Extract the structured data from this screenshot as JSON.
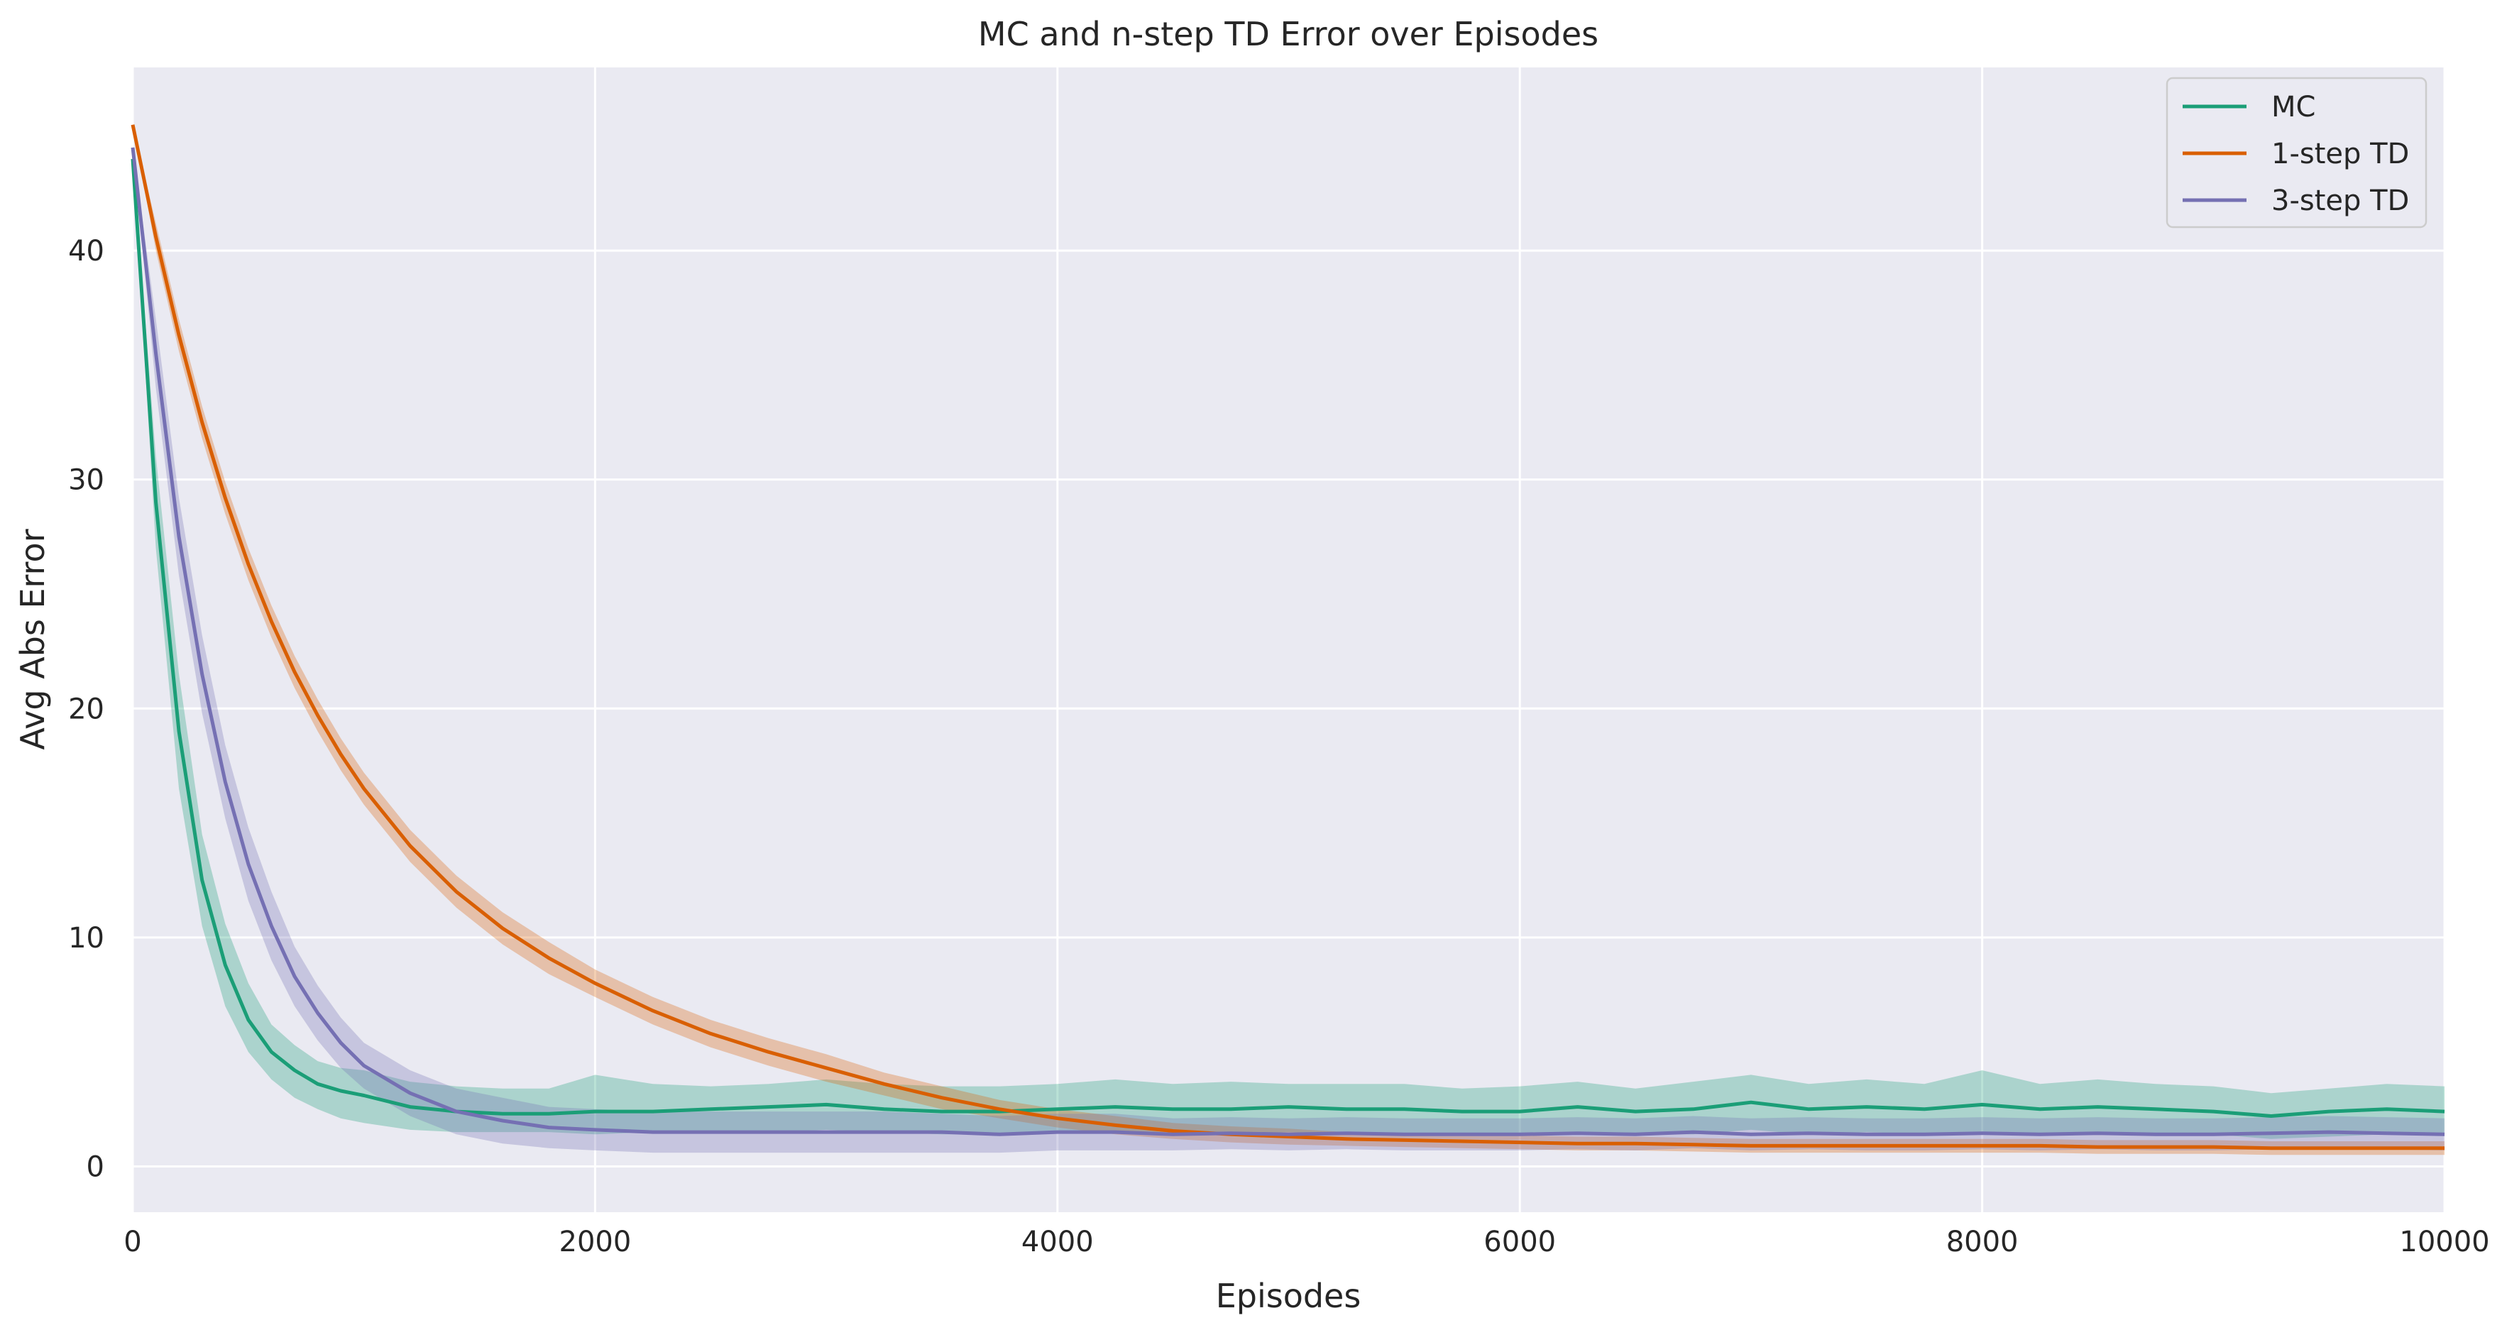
{
  "chart_data": {
    "type": "line",
    "title": "MC and n-step TD Error over Episodes",
    "xlabel": "Episodes",
    "ylabel": "Avg Abs Error",
    "xlim": [
      0,
      10000
    ],
    "ylim": [
      -2,
      48
    ],
    "xticks": [
      "0",
      "2000",
      "4000",
      "6000",
      "8000",
      "10000"
    ],
    "yticks": [
      "0",
      "10",
      "20",
      "30",
      "40"
    ],
    "grid": true,
    "legend_position": "top-right",
    "x": [
      0,
      100,
      200,
      300,
      400,
      500,
      600,
      700,
      800,
      900,
      1000,
      1200,
      1400,
      1600,
      1800,
      2000,
      2250,
      2500,
      2750,
      3000,
      3250,
      3500,
      3750,
      4000,
      4250,
      4500,
      4750,
      5000,
      5250,
      5500,
      5750,
      6000,
      6250,
      6500,
      6750,
      7000,
      7250,
      7500,
      7750,
      8000,
      8250,
      8500,
      8750,
      9000,
      9250,
      9500,
      9750,
      10000
    ],
    "series": [
      {
        "name": "MC",
        "color": "#1b9e77",
        "values": [
          44.0,
          29.0,
          19.0,
          12.5,
          8.8,
          6.4,
          5.0,
          4.2,
          3.6,
          3.3,
          3.1,
          2.6,
          2.4,
          2.3,
          2.3,
          2.4,
          2.4,
          2.5,
          2.6,
          2.7,
          2.5,
          2.4,
          2.4,
          2.5,
          2.6,
          2.5,
          2.5,
          2.6,
          2.5,
          2.5,
          2.4,
          2.4,
          2.6,
          2.4,
          2.5,
          2.8,
          2.5,
          2.6,
          2.5,
          2.7,
          2.5,
          2.6,
          2.5,
          2.4,
          2.2,
          2.4,
          2.5,
          2.4
        ],
        "lower": [
          44.0,
          27.0,
          16.5,
          10.5,
          7.0,
          5.0,
          3.8,
          3.0,
          2.5,
          2.1,
          1.9,
          1.6,
          1.5,
          1.5,
          1.5,
          1.4,
          1.5,
          1.5,
          1.5,
          1.6,
          1.5,
          1.4,
          1.4,
          1.5,
          1.5,
          1.5,
          1.4,
          1.5,
          1.4,
          1.4,
          1.4,
          1.4,
          1.5,
          1.4,
          1.4,
          1.6,
          1.4,
          1.5,
          1.4,
          1.5,
          1.4,
          1.5,
          1.4,
          1.4,
          1.2,
          1.3,
          1.4,
          1.4
        ],
        "upper": [
          44.0,
          31.0,
          21.5,
          14.5,
          10.6,
          8.0,
          6.2,
          5.3,
          4.6,
          4.3,
          4.2,
          3.7,
          3.5,
          3.4,
          3.4,
          4.0,
          3.6,
          3.5,
          3.6,
          3.8,
          3.6,
          3.5,
          3.5,
          3.6,
          3.8,
          3.6,
          3.7,
          3.6,
          3.6,
          3.6,
          3.4,
          3.5,
          3.7,
          3.4,
          3.7,
          4.0,
          3.6,
          3.8,
          3.6,
          4.2,
          3.6,
          3.8,
          3.6,
          3.5,
          3.2,
          3.4,
          3.6,
          3.5
        ]
      },
      {
        "name": "1-step TD",
        "color": "#d95f02",
        "values": [
          45.5,
          40.6,
          36.3,
          32.5,
          29.2,
          26.3,
          23.8,
          21.6,
          19.7,
          18.0,
          16.5,
          14.0,
          12.0,
          10.4,
          9.1,
          8.0,
          6.8,
          5.8,
          5.0,
          4.3,
          3.6,
          3.0,
          2.5,
          2.1,
          1.8,
          1.55,
          1.4,
          1.3,
          1.2,
          1.15,
          1.1,
          1.05,
          1.0,
          1.0,
          0.95,
          0.9,
          0.9,
          0.9,
          0.9,
          0.9,
          0.9,
          0.85,
          0.85,
          0.85,
          0.8,
          0.8,
          0.8,
          0.8
        ],
        "lower": [
          45.5,
          40.0,
          35.6,
          31.8,
          28.5,
          25.6,
          23.1,
          20.9,
          19.0,
          17.3,
          15.8,
          13.3,
          11.3,
          9.7,
          8.4,
          7.4,
          6.2,
          5.2,
          4.4,
          3.7,
          3.1,
          2.5,
          2.1,
          1.7,
          1.4,
          1.2,
          1.05,
          0.95,
          0.9,
          0.85,
          0.8,
          0.75,
          0.7,
          0.7,
          0.65,
          0.6,
          0.6,
          0.6,
          0.6,
          0.6,
          0.6,
          0.55,
          0.55,
          0.55,
          0.5,
          0.5,
          0.5,
          0.5
        ],
        "upper": [
          45.5,
          41.2,
          37.0,
          33.2,
          29.9,
          27.0,
          24.5,
          22.3,
          20.4,
          18.7,
          17.2,
          14.7,
          12.7,
          11.1,
          9.8,
          8.6,
          7.4,
          6.4,
          5.6,
          4.9,
          4.1,
          3.5,
          2.9,
          2.5,
          2.2,
          1.9,
          1.75,
          1.65,
          1.5,
          1.45,
          1.4,
          1.35,
          1.3,
          1.3,
          1.25,
          1.2,
          1.2,
          1.2,
          1.2,
          1.2,
          1.2,
          1.15,
          1.15,
          1.15,
          1.1,
          1.1,
          1.1,
          1.1
        ]
      },
      {
        "name": "3-step TD",
        "color": "#7570b3",
        "values": [
          44.5,
          35.5,
          27.5,
          21.5,
          16.8,
          13.2,
          10.5,
          8.3,
          6.7,
          5.4,
          4.4,
          3.2,
          2.4,
          2.0,
          1.7,
          1.6,
          1.5,
          1.5,
          1.5,
          1.5,
          1.5,
          1.5,
          1.4,
          1.5,
          1.5,
          1.4,
          1.45,
          1.4,
          1.45,
          1.4,
          1.4,
          1.4,
          1.45,
          1.4,
          1.5,
          1.4,
          1.45,
          1.4,
          1.4,
          1.45,
          1.4,
          1.45,
          1.4,
          1.4,
          1.45,
          1.5,
          1.45,
          1.4
        ],
        "lower": [
          44.5,
          34.0,
          25.8,
          19.8,
          15.2,
          11.6,
          9.0,
          7.0,
          5.5,
          4.3,
          3.4,
          2.2,
          1.4,
          1.0,
          0.8,
          0.7,
          0.6,
          0.6,
          0.6,
          0.6,
          0.6,
          0.6,
          0.6,
          0.7,
          0.7,
          0.7,
          0.75,
          0.7,
          0.75,
          0.7,
          0.7,
          0.7,
          0.75,
          0.7,
          0.8,
          0.7,
          0.75,
          0.7,
          0.7,
          0.75,
          0.7,
          0.75,
          0.7,
          0.7,
          0.75,
          0.8,
          0.75,
          0.7
        ],
        "upper": [
          44.5,
          37.0,
          29.2,
          23.2,
          18.4,
          14.8,
          12.0,
          9.6,
          7.9,
          6.5,
          5.4,
          4.2,
          3.4,
          3.0,
          2.6,
          2.5,
          2.4,
          2.4,
          2.4,
          2.4,
          2.4,
          2.3,
          2.2,
          2.3,
          2.3,
          2.1,
          2.15,
          2.1,
          2.15,
          2.1,
          2.1,
          2.1,
          2.15,
          2.1,
          2.2,
          2.1,
          2.15,
          2.1,
          2.1,
          2.15,
          2.1,
          2.15,
          2.1,
          2.1,
          2.15,
          2.2,
          2.15,
          2.1
        ]
      }
    ]
  }
}
